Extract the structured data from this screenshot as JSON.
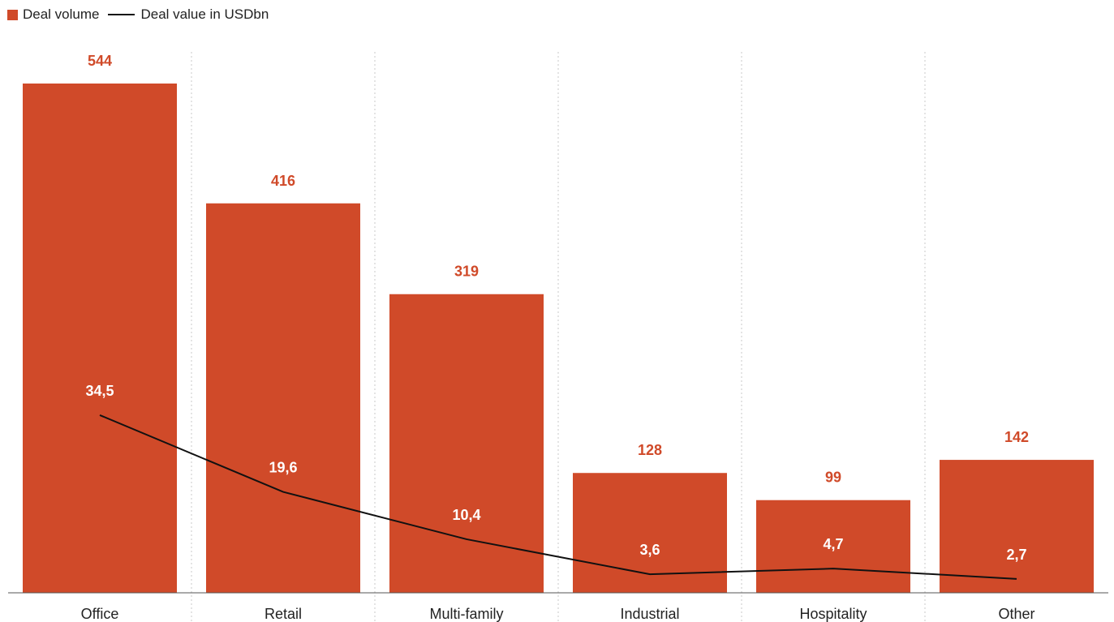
{
  "chart_data": {
    "type": "bar",
    "categories": [
      "Office",
      "Retail",
      "Multi-family",
      "Industrial",
      "Hospitality",
      "Other"
    ],
    "series": [
      {
        "name": "Deal volume",
        "type": "bar",
        "values": [
          544,
          416,
          319,
          128,
          99,
          142
        ],
        "labels": [
          "544",
          "416",
          "319",
          "128",
          "99",
          "142"
        ],
        "color": "#d04a29"
      },
      {
        "name": "Deal value in USDbn",
        "type": "line",
        "values": [
          34.5,
          19.6,
          10.4,
          3.6,
          4.7,
          2.7
        ],
        "labels": [
          "34,5",
          "19,6",
          "10,4",
          "3,6",
          "4,7",
          "2,7"
        ],
        "color": "#111111"
      }
    ],
    "legend_position": "top-left",
    "grid": "vertical dotted separators between categories"
  }
}
